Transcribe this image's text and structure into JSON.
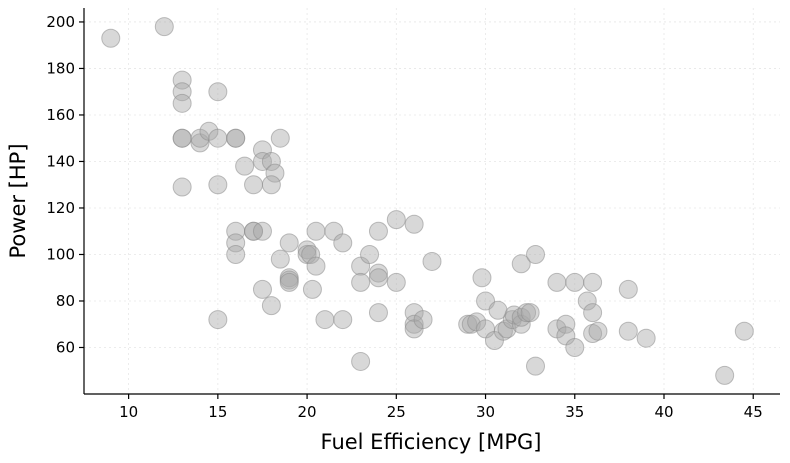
{
  "chart_data": {
    "type": "scatter",
    "title": "",
    "xlabel": "Fuel Efficiency [MPG]",
    "ylabel": "Power [HP]",
    "xlim": [
      7.5,
      46.5
    ],
    "ylim": [
      40,
      206
    ],
    "xticks": [
      10,
      15,
      20,
      25,
      30,
      35,
      40,
      45
    ],
    "yticks": [
      60,
      80,
      100,
      120,
      140,
      160,
      180,
      200
    ],
    "grid": true,
    "legend": "none",
    "marker_color": "#a9a9a9",
    "points": [
      [
        9,
        193
      ],
      [
        12,
        198
      ],
      [
        13,
        175
      ],
      [
        13,
        170
      ],
      [
        13,
        165
      ],
      [
        15,
        170
      ],
      [
        13,
        150
      ],
      [
        13,
        150
      ],
      [
        14,
        148
      ],
      [
        14,
        150
      ],
      [
        14.5,
        153
      ],
      [
        15,
        150
      ],
      [
        16,
        150
      ],
      [
        16,
        150
      ],
      [
        18.5,
        150
      ],
      [
        13,
        129
      ],
      [
        15,
        130
      ],
      [
        16.5,
        138
      ],
      [
        17,
        130
      ],
      [
        17.5,
        145
      ],
      [
        17.5,
        140
      ],
      [
        18,
        140
      ],
      [
        18.2,
        135
      ],
      [
        18,
        130
      ],
      [
        16,
        110
      ],
      [
        16,
        105
      ],
      [
        16,
        100
      ],
      [
        17,
        110
      ],
      [
        17,
        110
      ],
      [
        17.5,
        110
      ],
      [
        18.5,
        98
      ],
      [
        19,
        105
      ],
      [
        19,
        90
      ],
      [
        19,
        89
      ],
      [
        19,
        88
      ],
      [
        20,
        102
      ],
      [
        20,
        100
      ],
      [
        20.2,
        100
      ],
      [
        20.5,
        110
      ],
      [
        20.5,
        95
      ],
      [
        20.3,
        85
      ],
      [
        21.5,
        110
      ],
      [
        22,
        105
      ],
      [
        21,
        72
      ],
      [
        22,
        72
      ],
      [
        23,
        95
      ],
      [
        23,
        88
      ],
      [
        23.5,
        100
      ],
      [
        24,
        110
      ],
      [
        24,
        92
      ],
      [
        24,
        90
      ],
      [
        24,
        75
      ],
      [
        23,
        54
      ],
      [
        25,
        115
      ],
      [
        25,
        88
      ],
      [
        26,
        113
      ],
      [
        26,
        75
      ],
      [
        26,
        70
      ],
      [
        26,
        68
      ],
      [
        26.5,
        72
      ],
      [
        27,
        97
      ],
      [
        17.5,
        85
      ],
      [
        18,
        78
      ],
      [
        15,
        72
      ],
      [
        29,
        70
      ],
      [
        29.2,
        70
      ],
      [
        29.5,
        71
      ],
      [
        29.8,
        90
      ],
      [
        30,
        80
      ],
      [
        30,
        68
      ],
      [
        30.5,
        63
      ],
      [
        30.7,
        76
      ],
      [
        31,
        67
      ],
      [
        31.2,
        68
      ],
      [
        31.5,
        72
      ],
      [
        31.6,
        74
      ],
      [
        32,
        96
      ],
      [
        32,
        70
      ],
      [
        32,
        73
      ],
      [
        32.3,
        75
      ],
      [
        32.5,
        75
      ],
      [
        32.8,
        100
      ],
      [
        32.8,
        52
      ],
      [
        34,
        88
      ],
      [
        34,
        68
      ],
      [
        34.5,
        70
      ],
      [
        34.5,
        65
      ],
      [
        35,
        88
      ],
      [
        35,
        60
      ],
      [
        35.7,
        80
      ],
      [
        36,
        88
      ],
      [
        36,
        75
      ],
      [
        36,
        66
      ],
      [
        36.3,
        67
      ],
      [
        38,
        85
      ],
      [
        38,
        67
      ],
      [
        39,
        64
      ],
      [
        43.4,
        48
      ],
      [
        44.5,
        67
      ]
    ]
  }
}
